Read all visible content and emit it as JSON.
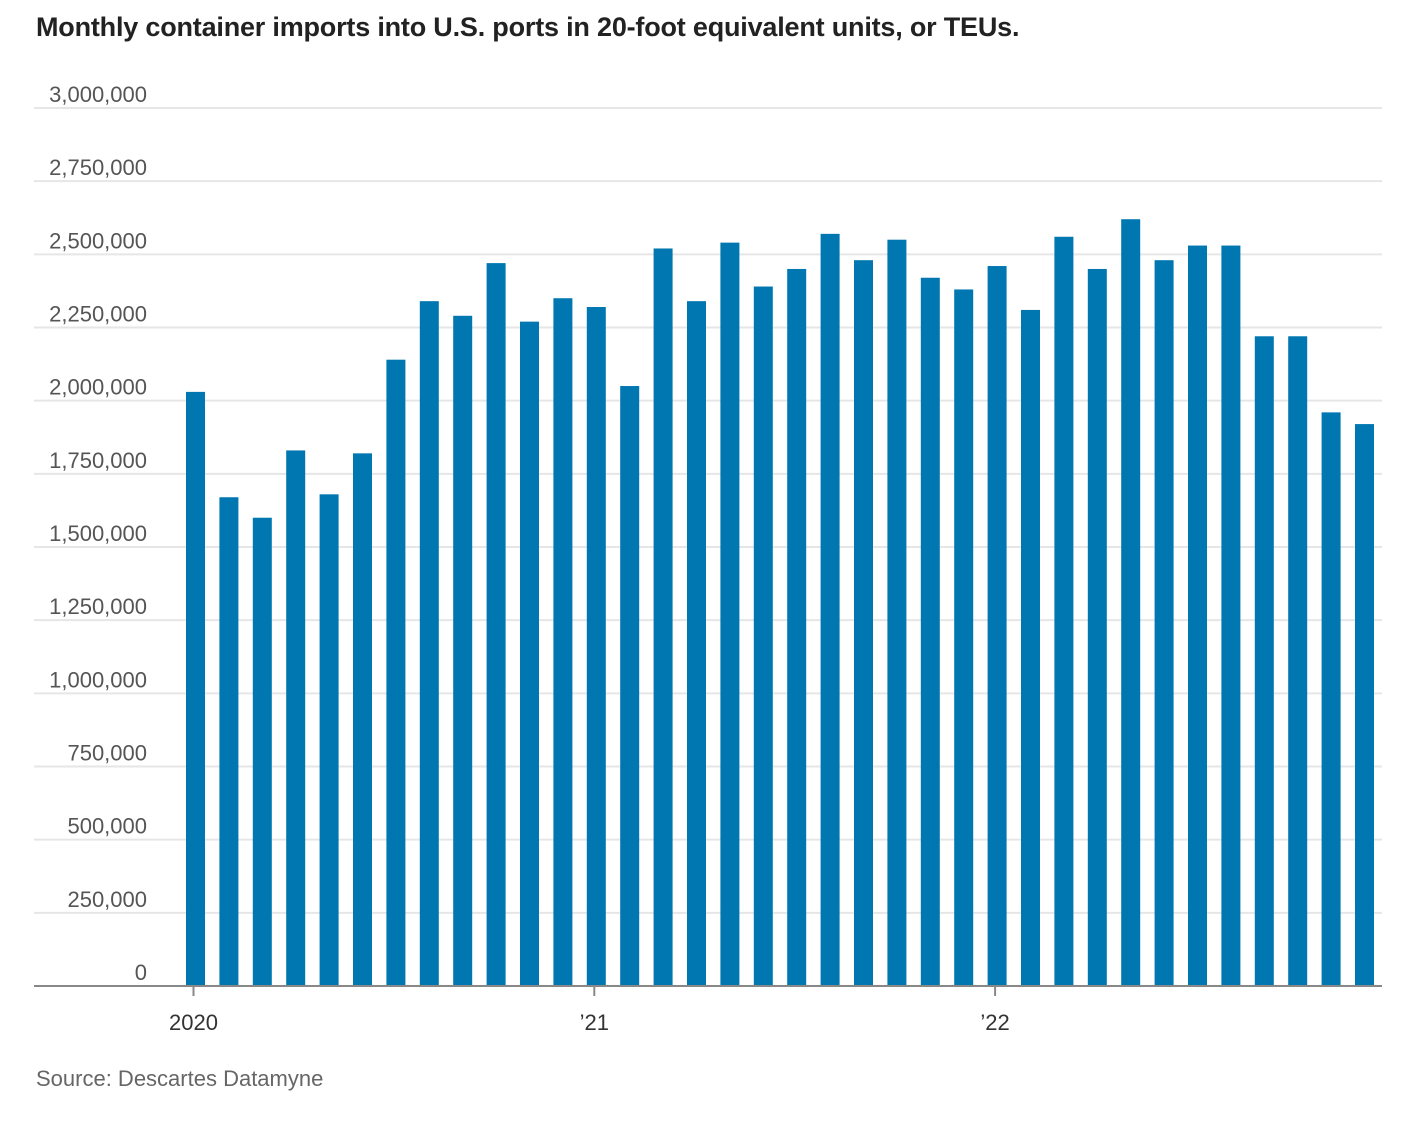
{
  "chart_data": {
    "type": "bar",
    "title": "Monthly container imports into U.S. ports in 20-foot equivalent units, or TEUs.",
    "source": "Source: Descartes Datamyne",
    "ylim": [
      0,
      3000000
    ],
    "y_ticks": [
      0,
      250000,
      500000,
      750000,
      1000000,
      1250000,
      1500000,
      1750000,
      2000000,
      2250000,
      2500000,
      2750000,
      3000000
    ],
    "y_tick_labels": [
      "0",
      "250,000",
      "500,000",
      "750,000",
      "1,000,000",
      "1,250,000",
      "1,500,000",
      "1,750,000",
      "2,000,000",
      "2,250,000",
      "2,500,000",
      "2,750,000",
      "3,000,000"
    ],
    "x_tick_labels": [
      {
        "label": "2020",
        "index": 0
      },
      {
        "label": "’21",
        "index": 12
      },
      {
        "label": "’22",
        "index": 24
      }
    ],
    "categories": [
      "2020-01",
      "2020-02",
      "2020-03",
      "2020-04",
      "2020-05",
      "2020-06",
      "2020-07",
      "2020-08",
      "2020-09",
      "2020-10",
      "2020-11",
      "2020-12",
      "2021-01",
      "2021-02",
      "2021-03",
      "2021-04",
      "2021-05",
      "2021-06",
      "2021-07",
      "2021-08",
      "2021-09",
      "2021-10",
      "2021-11",
      "2021-12",
      "2022-01",
      "2022-02",
      "2022-03",
      "2022-04",
      "2022-05",
      "2022-06",
      "2022-07",
      "2022-08",
      "2022-09",
      "2022-10",
      "2022-11",
      "2022-12"
    ],
    "values": [
      2030000,
      1670000,
      1600000,
      1830000,
      1680000,
      1820000,
      2140000,
      2340000,
      2290000,
      2470000,
      2270000,
      2350000,
      2320000,
      2050000,
      2520000,
      2340000,
      2540000,
      2390000,
      2450000,
      2570000,
      2480000,
      2550000,
      2420000,
      2380000,
      2460000,
      2310000,
      2560000,
      2450000,
      2620000,
      2480000,
      2530000,
      2530000,
      2220000,
      2220000,
      1960000,
      1920000
    ],
    "grid": true,
    "bar_color": "#0077b1"
  }
}
